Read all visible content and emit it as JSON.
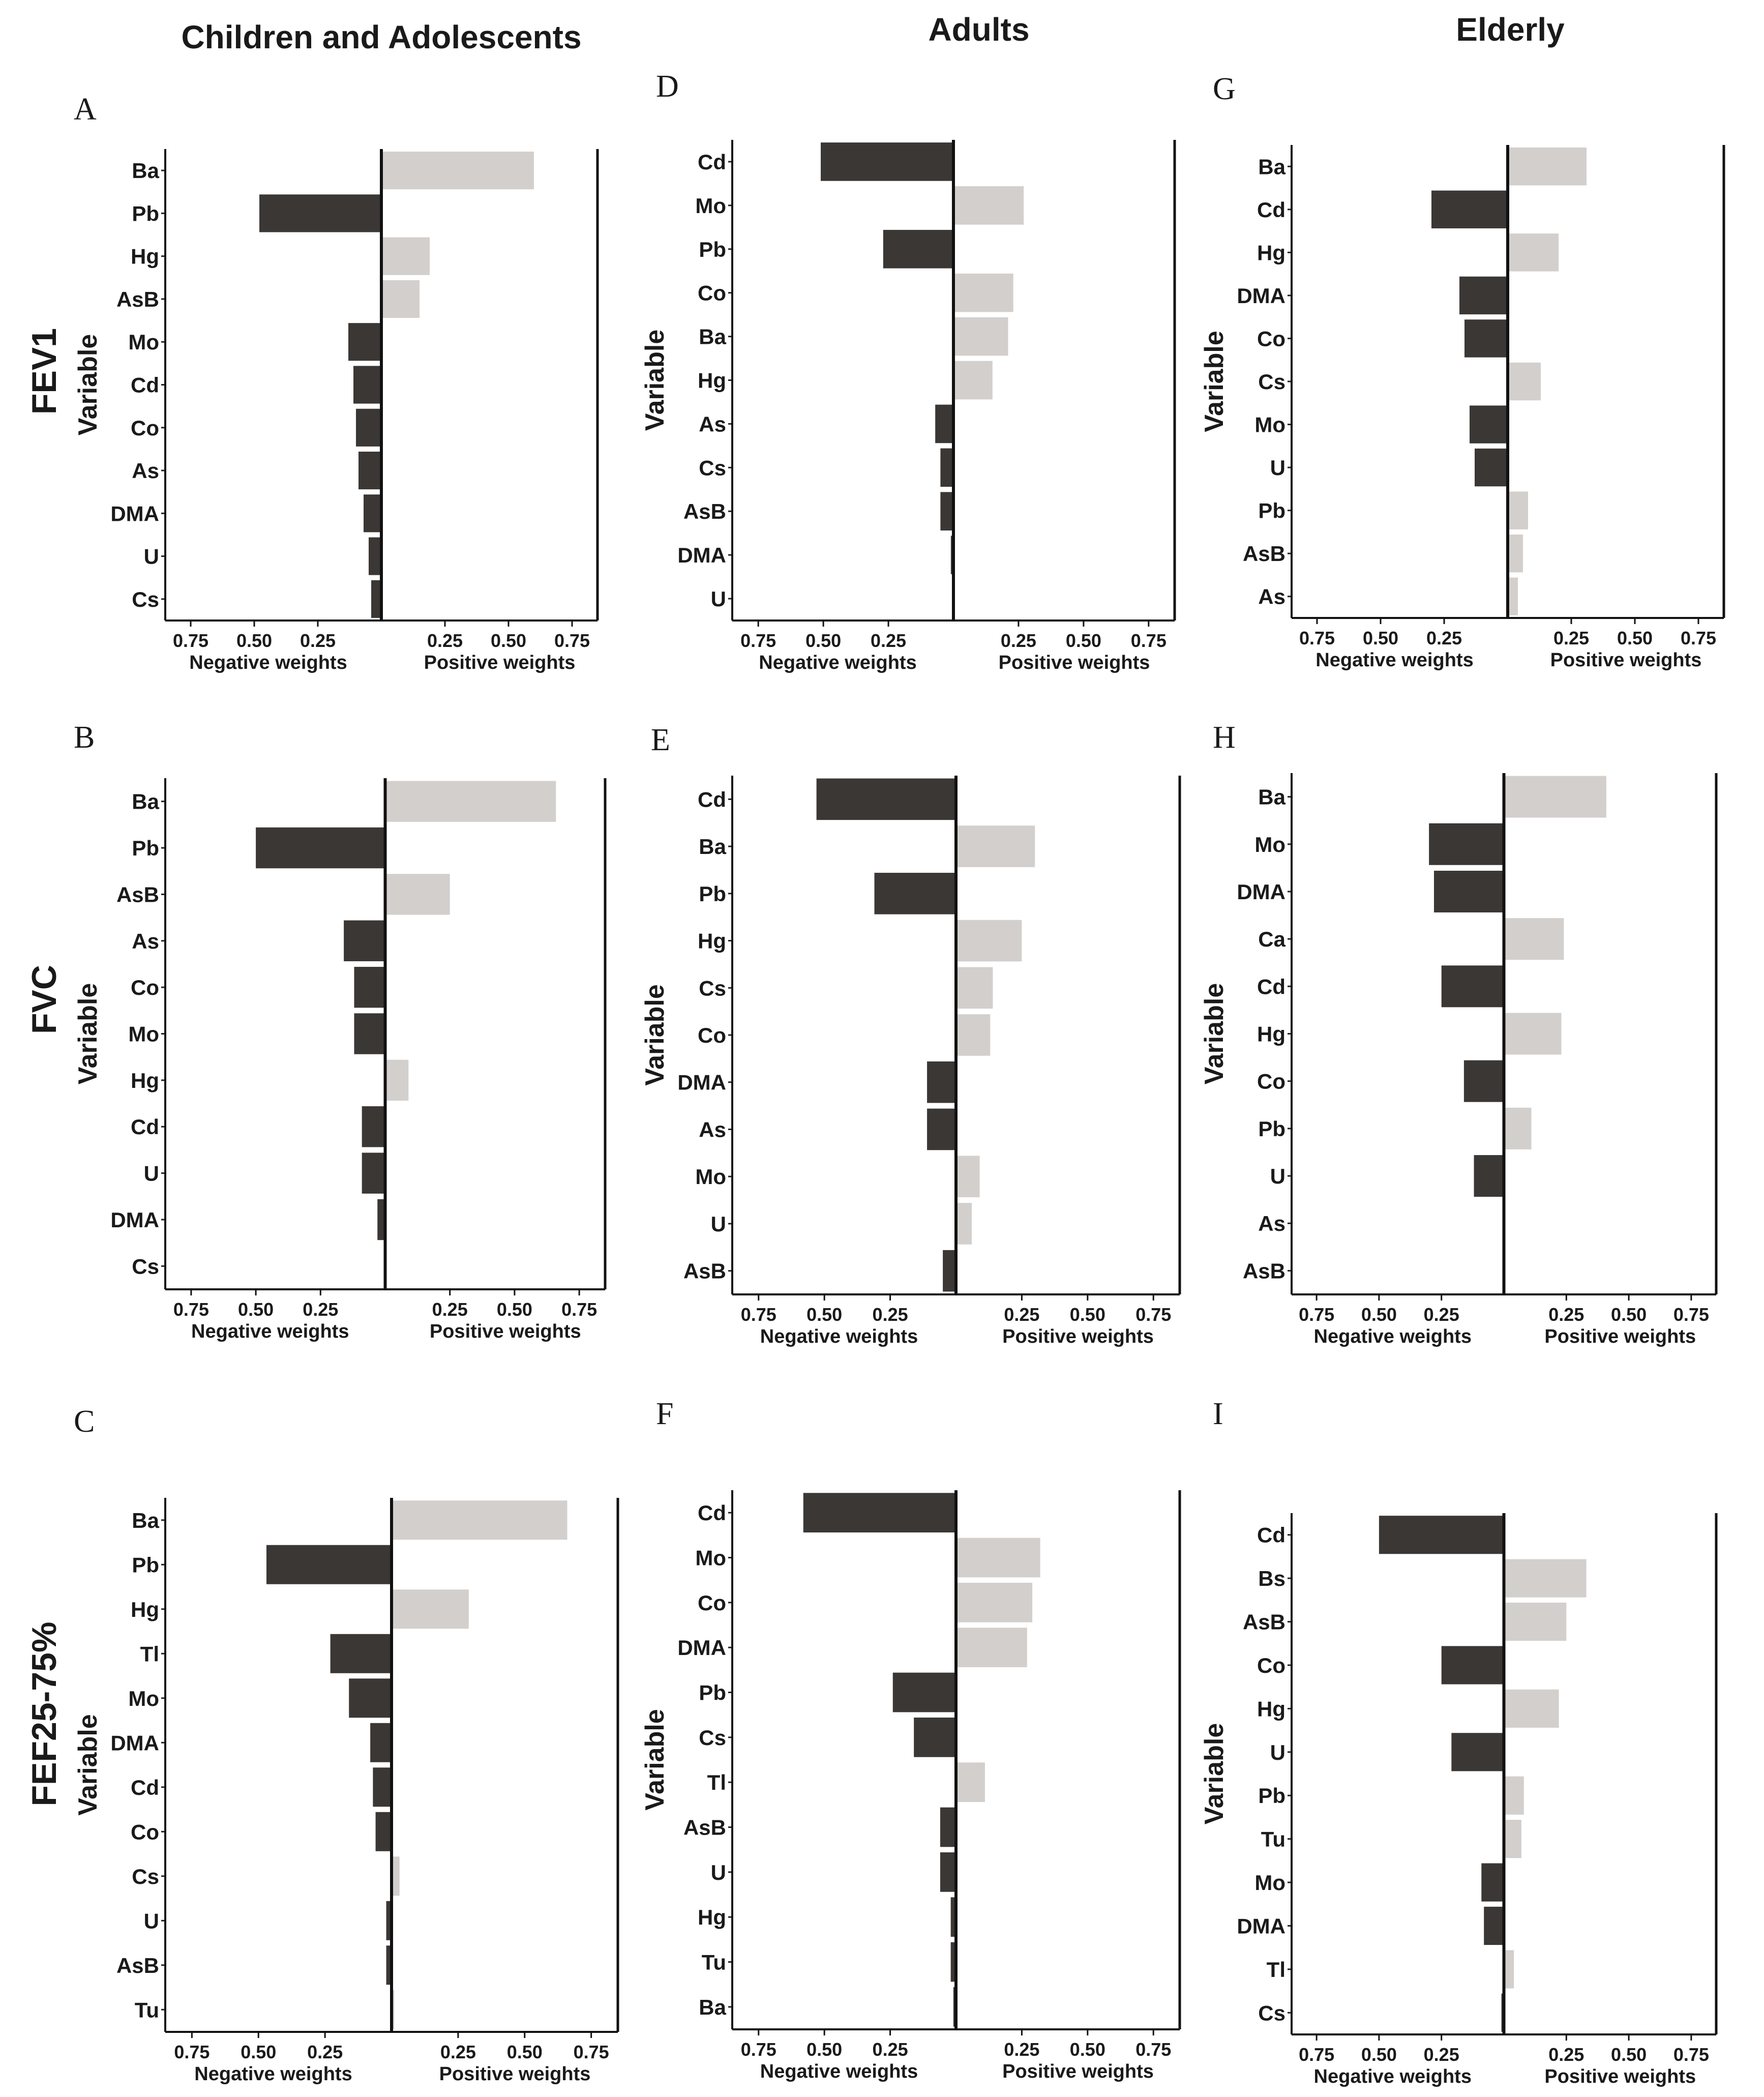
{
  "columns": [
    "Children and Adolescents",
    "Adults",
    "Elderly"
  ],
  "rows": [
    "FEV1",
    "FVC",
    "FEF25-75%"
  ],
  "common": {
    "ylabel": "Variable",
    "neg_label": "Negative weights",
    "pos_label": "Positive weights",
    "ticks": [
      "0.75",
      "0.50",
      "0.25"
    ],
    "pos_ticks": [
      "0.25",
      "0.50",
      "0.75"
    ]
  },
  "colors": {
    "negative": "#3b3735",
    "positive": "#d3cfcc"
  },
  "chart_data": [
    {
      "id": "A",
      "type": "bar",
      "orientation": "horizontal",
      "row": "FEV1",
      "column": "Children and Adolescents",
      "xlim": [
        -0.85,
        0.85
      ],
      "categories": [
        "Ba",
        "Pb",
        "Hg",
        "AsB",
        "Mo",
        "Cd",
        "Co",
        "As",
        "DMA",
        "U",
        "Cs"
      ],
      "values": [
        0.6,
        -0.48,
        0.19,
        0.15,
        -0.13,
        -0.11,
        -0.1,
        -0.09,
        -0.07,
        -0.05,
        -0.04
      ]
    },
    {
      "id": "B",
      "type": "bar",
      "orientation": "horizontal",
      "row": "FVC",
      "column": "Children and Adolescents",
      "xlim": [
        -0.85,
        0.85
      ],
      "categories": [
        "Ba",
        "Pb",
        "AsB",
        "As",
        "Co",
        "Mo",
        "Hg",
        "Cd",
        "U",
        "DMA",
        "Cs"
      ],
      "values": [
        0.66,
        -0.5,
        0.25,
        -0.16,
        -0.12,
        -0.12,
        0.09,
        -0.09,
        -0.09,
        -0.03,
        0.0
      ]
    },
    {
      "id": "C",
      "type": "bar",
      "orientation": "horizontal",
      "row": "FEF25-75%",
      "column": "Children and Adolescents",
      "xlim": [
        -0.85,
        0.85
      ],
      "categories": [
        "Ba",
        "Pb",
        "Hg",
        "Tl",
        "Mo",
        "DMA",
        "Cd",
        "Co",
        "Cs",
        "U",
        "AsB",
        "Tu"
      ],
      "values": [
        0.66,
        -0.47,
        0.29,
        -0.23,
        -0.16,
        -0.08,
        -0.07,
        -0.06,
        0.03,
        -0.02,
        -0.02,
        0.01
      ]
    },
    {
      "id": "D",
      "type": "bar",
      "orientation": "horizontal",
      "row": "FEV1",
      "column": "Adults",
      "xlim": [
        -0.85,
        0.85
      ],
      "categories": [
        "Cd",
        "Mo",
        "Pb",
        "Co",
        "Ba",
        "Hg",
        "As",
        "Cs",
        "AsB",
        "DMA",
        "U"
      ],
      "values": [
        -0.51,
        0.27,
        -0.27,
        0.23,
        0.21,
        0.15,
        -0.07,
        -0.05,
        -0.05,
        -0.01,
        0.0
      ]
    },
    {
      "id": "E",
      "type": "bar",
      "orientation": "horizontal",
      "row": "FVC",
      "column": "Adults",
      "xlim": [
        -0.85,
        0.85
      ],
      "categories": [
        "Cd",
        "Ba",
        "Pb",
        "Hg",
        "Cs",
        "Co",
        "DMA",
        "As",
        "Mo",
        "U",
        "AsB"
      ],
      "values": [
        -0.53,
        0.3,
        -0.31,
        0.25,
        0.14,
        0.13,
        -0.11,
        -0.11,
        0.09,
        0.06,
        -0.05
      ]
    },
    {
      "id": "F",
      "type": "bar",
      "orientation": "horizontal",
      "row": "FEF25-75%",
      "column": "Adults",
      "xlim": [
        -0.85,
        0.85
      ],
      "categories": [
        "Cd",
        "Mo",
        "Co",
        "DMA",
        "Pb",
        "Cs",
        "Tl",
        "AsB",
        "U",
        "Hg",
        "Tu",
        "Ba"
      ],
      "values": [
        -0.58,
        0.32,
        0.29,
        0.27,
        -0.24,
        -0.16,
        0.11,
        -0.06,
        -0.06,
        -0.02,
        -0.02,
        -0.01
      ]
    },
    {
      "id": "G",
      "type": "bar",
      "orientation": "horizontal",
      "row": "FEV1",
      "column": "Elderly",
      "xlim": [
        -0.85,
        0.85
      ],
      "categories": [
        "Ba",
        "Cd",
        "Hg",
        "DMA",
        "Co",
        "Cs",
        "Mo",
        "U",
        "Pb",
        "AsB",
        "As"
      ],
      "values": [
        0.31,
        -0.3,
        0.2,
        -0.19,
        -0.17,
        0.13,
        -0.15,
        -0.13,
        0.08,
        0.06,
        0.04
      ]
    },
    {
      "id": "H",
      "type": "bar",
      "orientation": "horizontal",
      "row": "FVC",
      "column": "Elderly",
      "xlim": [
        -0.85,
        0.85
      ],
      "categories": [
        "Ba",
        "Mo",
        "DMA",
        "Ca",
        "Cd",
        "Hg",
        "Co",
        "Pb",
        "U",
        "As",
        "AsB"
      ],
      "values": [
        0.41,
        -0.3,
        -0.28,
        0.24,
        -0.25,
        0.23,
        -0.16,
        0.11,
        -0.12,
        0.0,
        0.0
      ]
    },
    {
      "id": "I",
      "type": "bar",
      "orientation": "horizontal",
      "row": "FEF25-75%",
      "column": "Elderly",
      "xlim": [
        -0.85,
        0.85
      ],
      "categories": [
        "Cd",
        "Bs",
        "AsB",
        "Co",
        "Hg",
        "U",
        "Pb",
        "Tu",
        "Mo",
        "DMA",
        "Tl",
        "Cs"
      ],
      "values": [
        -0.5,
        0.33,
        0.25,
        -0.25,
        0.22,
        -0.21,
        0.08,
        0.07,
        -0.09,
        -0.08,
        0.04,
        -0.01
      ]
    }
  ]
}
